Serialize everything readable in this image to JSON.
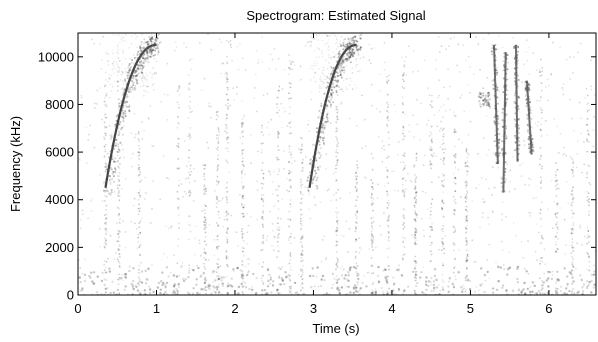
{
  "chart_data": {
    "type": "heatmap",
    "title": "Spectrogram: Estimated Signal",
    "xlabel": "Time (s)",
    "ylabel": "Frequency (kHz)",
    "xlim": [
      0,
      6.6
    ],
    "ylim": [
      0,
      11000
    ],
    "xticks": [
      0,
      1,
      2,
      3,
      4,
      5,
      6
    ],
    "yticks": [
      0,
      2000,
      4000,
      6000,
      8000,
      10000
    ],
    "xtick_labels": [
      "0",
      "1",
      "2",
      "3",
      "4",
      "5",
      "6"
    ],
    "ytick_labels": [
      "0",
      "2000",
      "4000",
      "6000",
      "8000",
      "10000"
    ],
    "colormap": "grayscale (dark = high energy)",
    "grid": false,
    "features": [
      {
        "name": "chirp-1",
        "t_start": 0.35,
        "t_end": 1.0,
        "f_start": 4500,
        "f_end": 10500
      },
      {
        "name": "chirp-2",
        "t_start": 2.95,
        "t_end": 3.55,
        "f_start": 4500,
        "f_end": 10500
      },
      {
        "name": "burst-cluster",
        "t_start": 5.05,
        "t_end": 5.8,
        "f_low": 4300,
        "f_high": 10500
      },
      {
        "name": "low-band-energy",
        "t_start": 0.0,
        "t_end": 6.6,
        "f_low": 0,
        "f_high": 1200
      }
    ]
  },
  "colors": {
    "ink": "#000000",
    "background": "#ffffff",
    "energy": "#555555"
  }
}
